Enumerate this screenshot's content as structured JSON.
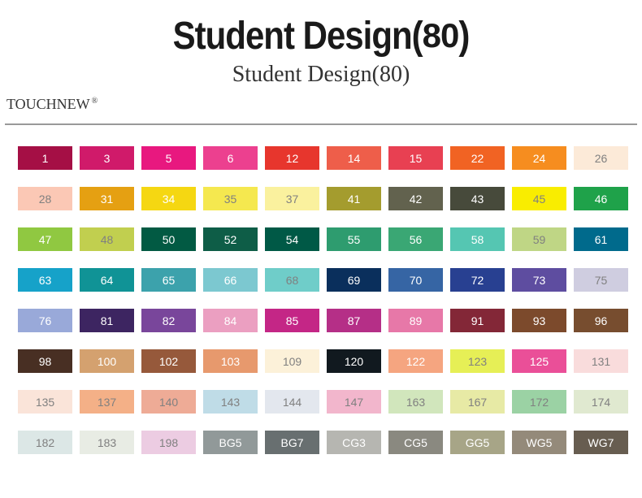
{
  "header": {
    "title_main": "Student Design(",
    "title_count": "80",
    "title_close": ")",
    "subtitle_main": "Student Design(",
    "subtitle_count": "80",
    "subtitle_close": ")"
  },
  "brand": "TOUCHNEW",
  "brand_reg": "®",
  "grid": {
    "columns": 10,
    "rows": 8,
    "swatch_width": 67,
    "swatch_height": 29,
    "col_gap": 9,
    "row_gap": 21,
    "label_fontsize": 14
  },
  "swatches": [
    {
      "label": "1",
      "bg": "#a50f45",
      "fg": "#ffffff"
    },
    {
      "label": "3",
      "bg": "#d01a6a",
      "fg": "#ffffff"
    },
    {
      "label": "5",
      "bg": "#e8187f",
      "fg": "#ffffff"
    },
    {
      "label": "6",
      "bg": "#ec408f",
      "fg": "#ffffff"
    },
    {
      "label": "12",
      "bg": "#e7362d",
      "fg": "#ffffff"
    },
    {
      "label": "14",
      "bg": "#ee5e4a",
      "fg": "#ffffff"
    },
    {
      "label": "15",
      "bg": "#e84052",
      "fg": "#ffffff"
    },
    {
      "label": "22",
      "bg": "#f16323",
      "fg": "#ffffff"
    },
    {
      "label": "24",
      "bg": "#f68d1f",
      "fg": "#ffffff"
    },
    {
      "label": "26",
      "bg": "#fcead8",
      "fg": "#808080"
    },
    {
      "label": "28",
      "bg": "#fbc8b5",
      "fg": "#808080"
    },
    {
      "label": "31",
      "bg": "#e5a012",
      "fg": "#ffffff"
    },
    {
      "label": "34",
      "bg": "#f5d712",
      "fg": "#ffffff"
    },
    {
      "label": "35",
      "bg": "#f5e84f",
      "fg": "#808080"
    },
    {
      "label": "37",
      "bg": "#faf19e",
      "fg": "#808080"
    },
    {
      "label": "41",
      "bg": "#a49c2e",
      "fg": "#ffffff"
    },
    {
      "label": "42",
      "bg": "#62624e",
      "fg": "#ffffff"
    },
    {
      "label": "43",
      "bg": "#474a3b",
      "fg": "#ffffff"
    },
    {
      "label": "45",
      "bg": "#f9ed00",
      "fg": "#808080"
    },
    {
      "label": "46",
      "bg": "#1fa24a",
      "fg": "#ffffff"
    },
    {
      "label": "47",
      "bg": "#90c841",
      "fg": "#ffffff"
    },
    {
      "label": "48",
      "bg": "#c1cf4f",
      "fg": "#808080"
    },
    {
      "label": "50",
      "bg": "#025a43",
      "fg": "#ffffff"
    },
    {
      "label": "52",
      "bg": "#0e5d47",
      "fg": "#ffffff"
    },
    {
      "label": "54",
      "bg": "#005946",
      "fg": "#ffffff"
    },
    {
      "label": "55",
      "bg": "#2e9c6f",
      "fg": "#ffffff"
    },
    {
      "label": "56",
      "bg": "#3aa774",
      "fg": "#ffffff"
    },
    {
      "label": "58",
      "bg": "#55c6b2",
      "fg": "#ffffff"
    },
    {
      "label": "59",
      "bg": "#bfd685",
      "fg": "#808080"
    },
    {
      "label": "61",
      "bg": "#006a8c",
      "fg": "#ffffff"
    },
    {
      "label": "63",
      "bg": "#16a2c9",
      "fg": "#ffffff"
    },
    {
      "label": "64",
      "bg": "#109396",
      "fg": "#ffffff"
    },
    {
      "label": "65",
      "bg": "#3ca2ac",
      "fg": "#ffffff"
    },
    {
      "label": "66",
      "bg": "#7cc8d0",
      "fg": "#ffffff"
    },
    {
      "label": "68",
      "bg": "#6fcdc9",
      "fg": "#808080"
    },
    {
      "label": "69",
      "bg": "#0a2f5c",
      "fg": "#ffffff"
    },
    {
      "label": "70",
      "bg": "#3665a4",
      "fg": "#ffffff"
    },
    {
      "label": "72",
      "bg": "#284091",
      "fg": "#ffffff"
    },
    {
      "label": "73",
      "bg": "#5e4da0",
      "fg": "#ffffff"
    },
    {
      "label": "75",
      "bg": "#cfcde0",
      "fg": "#808080"
    },
    {
      "label": "76",
      "bg": "#99a9d9",
      "fg": "#ffffff"
    },
    {
      "label": "81",
      "bg": "#3d2561",
      "fg": "#ffffff"
    },
    {
      "label": "82",
      "bg": "#79469b",
      "fg": "#ffffff"
    },
    {
      "label": "84",
      "bg": "#eb9fc1",
      "fg": "#ffffff"
    },
    {
      "label": "85",
      "bg": "#c42686",
      "fg": "#ffffff"
    },
    {
      "label": "87",
      "bg": "#b52f87",
      "fg": "#ffffff"
    },
    {
      "label": "89",
      "bg": "#e778a8",
      "fg": "#ffffff"
    },
    {
      "label": "91",
      "bg": "#832737",
      "fg": "#ffffff"
    },
    {
      "label": "93",
      "bg": "#7c4a2c",
      "fg": "#ffffff"
    },
    {
      "label": "96",
      "bg": "#774d2f",
      "fg": "#ffffff"
    },
    {
      "label": "98",
      "bg": "#482f23",
      "fg": "#ffffff"
    },
    {
      "label": "100",
      "bg": "#d4a16f",
      "fg": "#ffffff"
    },
    {
      "label": "102",
      "bg": "#96593b",
      "fg": "#ffffff"
    },
    {
      "label": "103",
      "bg": "#e7996d",
      "fg": "#ffffff"
    },
    {
      "label": "109",
      "bg": "#fcf1d9",
      "fg": "#808080"
    },
    {
      "label": "120",
      "bg": "#11191f",
      "fg": "#ffffff"
    },
    {
      "label": "122",
      "bg": "#f5a580",
      "fg": "#ffffff"
    },
    {
      "label": "123",
      "bg": "#e6ef56",
      "fg": "#808080"
    },
    {
      "label": "125",
      "bg": "#ea4f98",
      "fg": "#ffffff"
    },
    {
      "label": "131",
      "bg": "#f9dcdc",
      "fg": "#808080"
    },
    {
      "label": "135",
      "bg": "#fae4d9",
      "fg": "#808080"
    },
    {
      "label": "137",
      "bg": "#f4b087",
      "fg": "#808080"
    },
    {
      "label": "140",
      "bg": "#eeab96",
      "fg": "#808080"
    },
    {
      "label": "143",
      "bg": "#bfdce7",
      "fg": "#808080"
    },
    {
      "label": "144",
      "bg": "#e3e7ee",
      "fg": "#808080"
    },
    {
      "label": "147",
      "bg": "#f2b6cc",
      "fg": "#808080"
    },
    {
      "label": "163",
      "bg": "#d1e6bc",
      "fg": "#808080"
    },
    {
      "label": "167",
      "bg": "#e7eaa5",
      "fg": "#808080"
    },
    {
      "label": "172",
      "bg": "#9bd2a4",
      "fg": "#808080"
    },
    {
      "label": "174",
      "bg": "#e0e9d0",
      "fg": "#808080"
    },
    {
      "label": "182",
      "bg": "#dce7e6",
      "fg": "#808080"
    },
    {
      "label": "183",
      "bg": "#e8ece4",
      "fg": "#808080"
    },
    {
      "label": "198",
      "bg": "#eccce2",
      "fg": "#808080"
    },
    {
      "label": "BG5",
      "bg": "#919999",
      "fg": "#ffffff"
    },
    {
      "label": "BG7",
      "bg": "#686f70",
      "fg": "#ffffff"
    },
    {
      "label": "CG3",
      "bg": "#b6b6b1",
      "fg": "#ffffff"
    },
    {
      "label": "CG5",
      "bg": "#8a8980",
      "fg": "#ffffff"
    },
    {
      "label": "GG5",
      "bg": "#a7a587",
      "fg": "#ffffff"
    },
    {
      "label": "WG5",
      "bg": "#948a7a",
      "fg": "#ffffff"
    },
    {
      "label": "WG7",
      "bg": "#675d50",
      "fg": "#ffffff"
    }
  ]
}
